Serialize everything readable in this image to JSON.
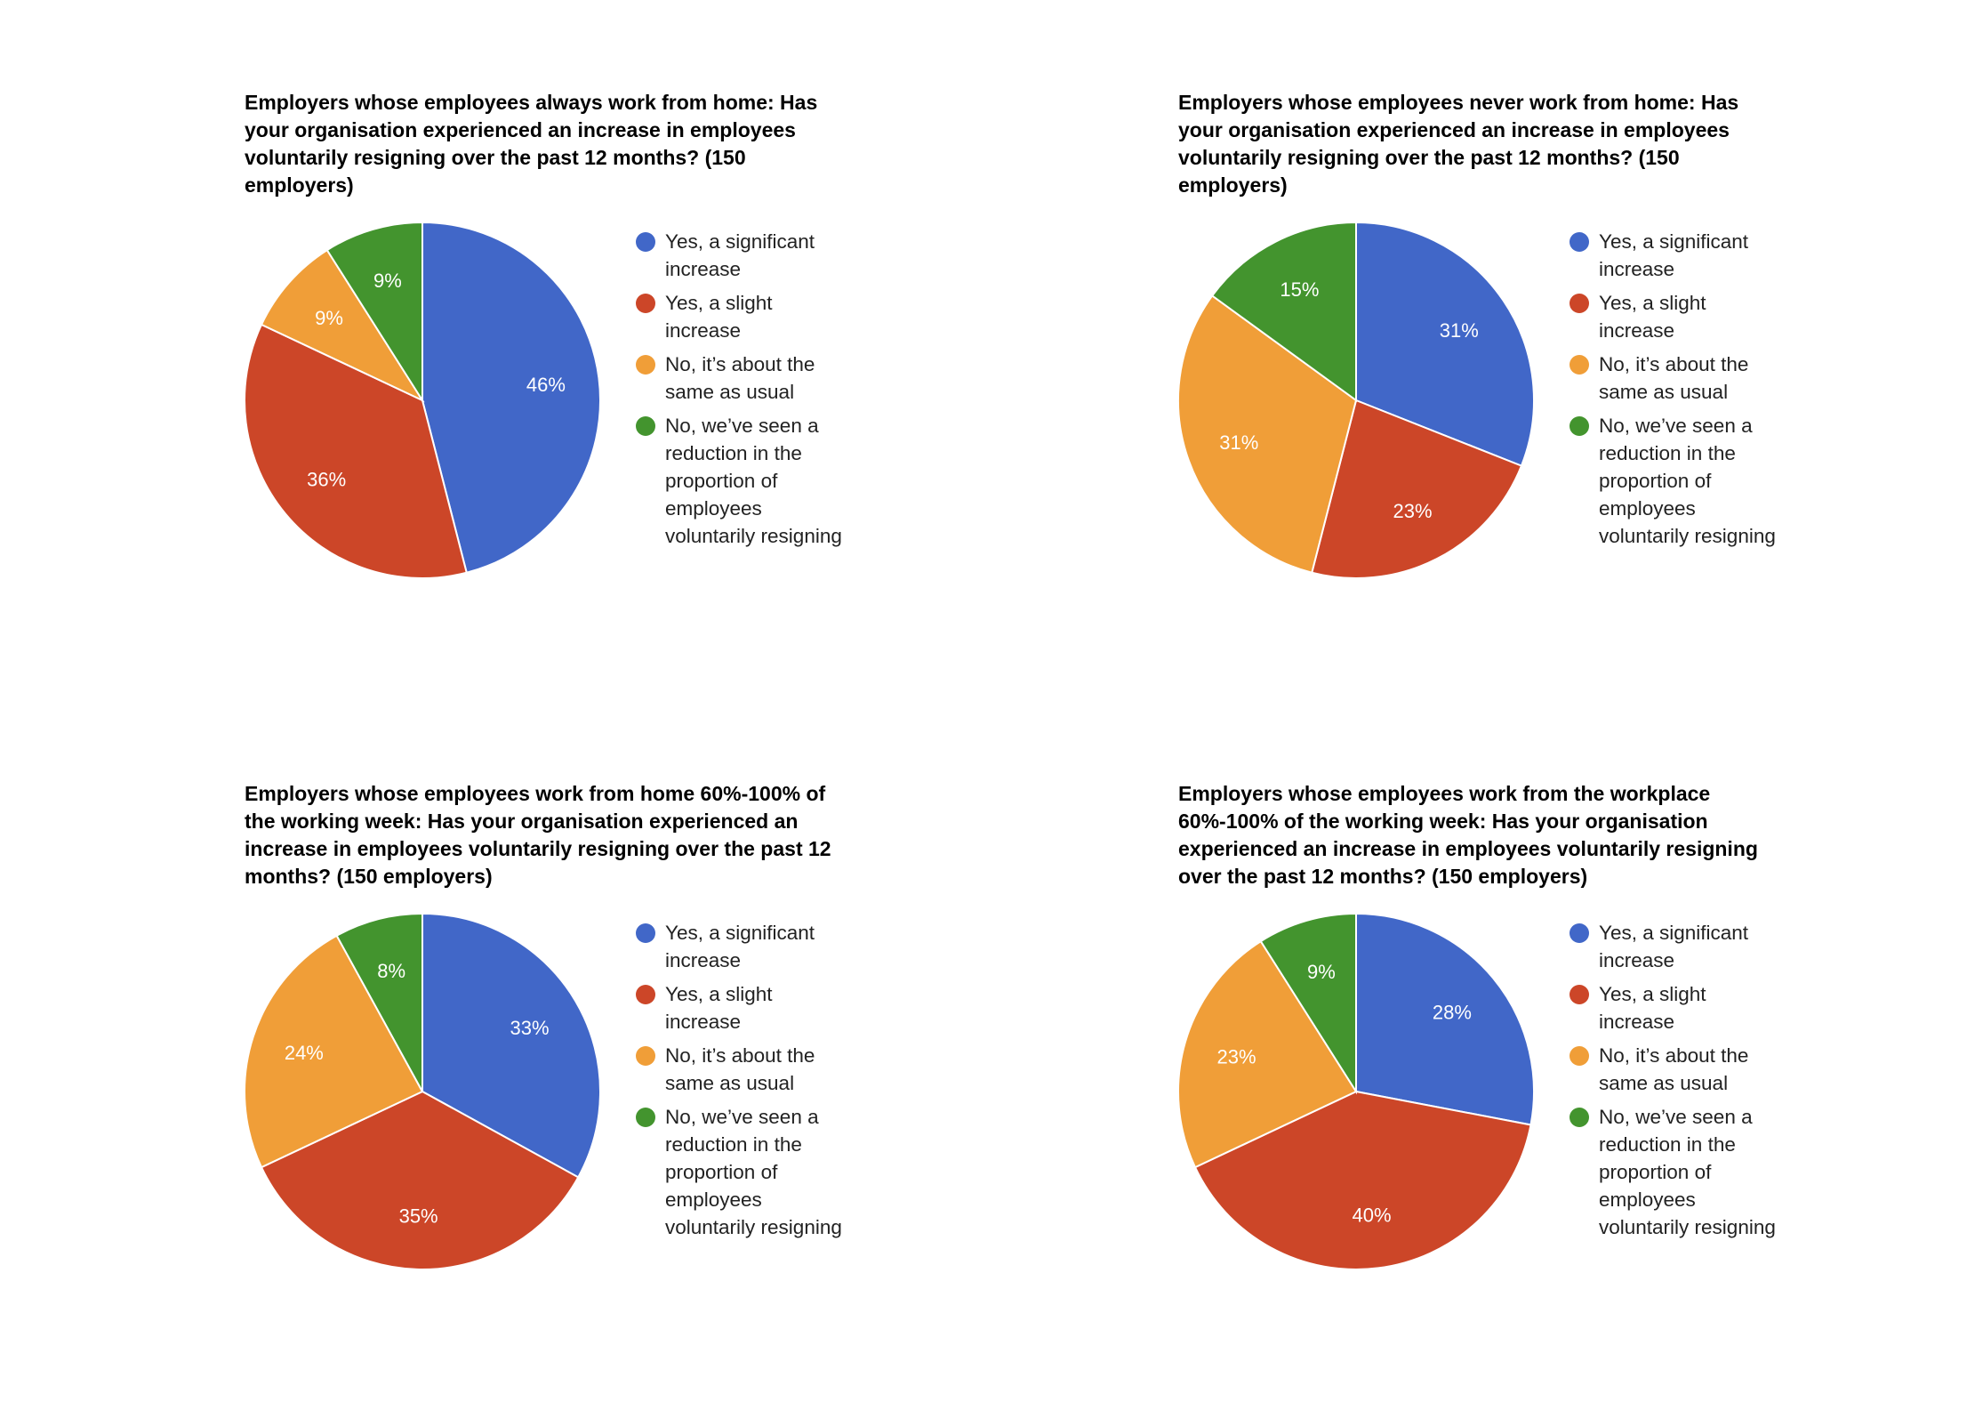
{
  "colors": {
    "blue": "#4167c8",
    "red": "#cc4628",
    "orange": "#f09e38",
    "green": "#43942e"
  },
  "legend_labels": [
    "Yes, a significant increase",
    "Yes, a slight increase",
    "No, it’s about the same as usual",
    "No, we’ve seen a reduction in the proportion of employees voluntarily resigning"
  ],
  "chart_data": [
    {
      "type": "pie",
      "title": "Employers whose employees always work from home: Has your organisation experienced an increase in employees voluntarily resigning over the past 12 months? (150 employers)",
      "categories": [
        "Yes, a significant increase",
        "Yes, a slight increase",
        "No, it’s about the same as usual",
        "No, we’ve seen a reduction in the proportion of employees voluntarily resigning"
      ],
      "values": [
        46,
        36,
        9,
        9
      ],
      "labels": [
        "46%",
        "36%",
        "9%",
        "9%"
      ],
      "legend_position": "right"
    },
    {
      "type": "pie",
      "title": "Employers whose employees never work from home: Has your organisation experienced an increase in employees voluntarily resigning over the past 12 months? (150 employers)",
      "categories": [
        "Yes, a significant increase",
        "Yes, a slight increase",
        "No, it’s about the same as usual",
        "No, we’ve seen a reduction in the proportion of employees voluntarily resigning"
      ],
      "values": [
        31,
        23,
        31,
        15
      ],
      "labels": [
        "31%",
        "23%",
        "31%",
        "15%"
      ],
      "legend_position": "right"
    },
    {
      "type": "pie",
      "title": "Employers whose employees work from home 60%-100% of the working week: Has your organisation experienced an increase in employees voluntarily resigning over the past 12 months? (150 employers)",
      "categories": [
        "Yes, a significant increase",
        "Yes, a slight increase",
        "No, it’s about the same as usual",
        "No, we’ve seen a reduction in the proportion of employees voluntarily resigning"
      ],
      "values": [
        33,
        35,
        24,
        8
      ],
      "labels": [
        "33%",
        "35%",
        "24%",
        "8%"
      ],
      "legend_position": "right"
    },
    {
      "type": "pie",
      "title": "Employers whose employees work from the workplace 60%-100% of the working week: Has your organisation experienced an increase in employees voluntarily resigning over the past 12 months? (150 employers)",
      "categories": [
        "Yes, a significant increase",
        "Yes, a slight increase",
        "No, it’s about the same as usual",
        "No, we’ve seen a reduction in the proportion of employees voluntarily resigning"
      ],
      "values": [
        28,
        40,
        23,
        9
      ],
      "labels": [
        "28%",
        "40%",
        "23%",
        "9%"
      ],
      "legend_position": "right"
    }
  ]
}
